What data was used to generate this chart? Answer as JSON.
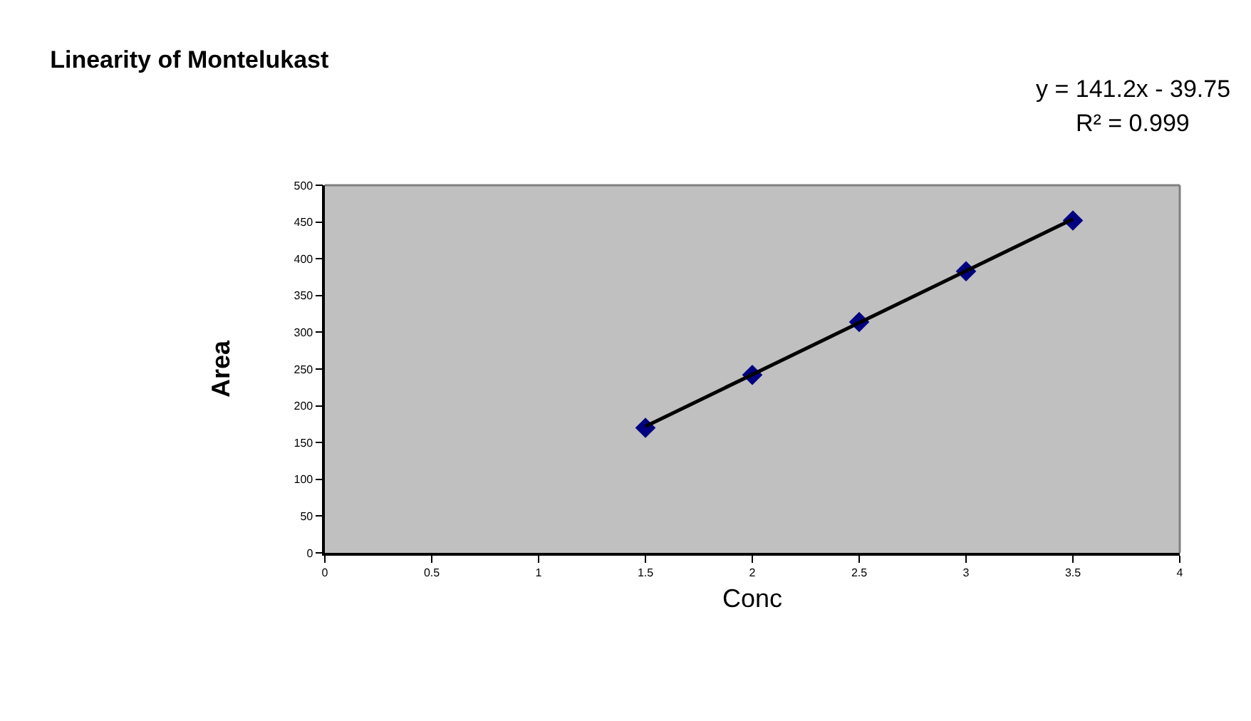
{
  "chart_data": {
    "type": "scatter",
    "title": "Linearity of Montelukast",
    "xlabel": "Conc",
    "ylabel": "Area",
    "x": [
      1.5,
      2,
      2.5,
      3,
      3.5
    ],
    "series": [
      {
        "color": "#000080",
        "marker": "diamond",
        "values": [
          170,
          242,
          314,
          383,
          452
        ]
      },
      {
        "type": "line",
        "color": "#000000",
        "marker": "none",
        "line_style": "solid",
        "x": [
          1.5,
          3.5
        ],
        "values": [
          172,
          454
        ]
      }
    ],
    "annotations": [
      "y = 141.2x - 39.75",
      "R² = 0.999"
    ],
    "xlim": [
      0,
      4
    ],
    "xticks": [
      0,
      0.5,
      1,
      1.5,
      2,
      2.5,
      3,
      3.5,
      4
    ],
    "ylim": [
      0,
      500
    ],
    "yticks": [
      0,
      50,
      100,
      150,
      200,
      250,
      300,
      350,
      400,
      450,
      500
    ],
    "grid": false
  }
}
